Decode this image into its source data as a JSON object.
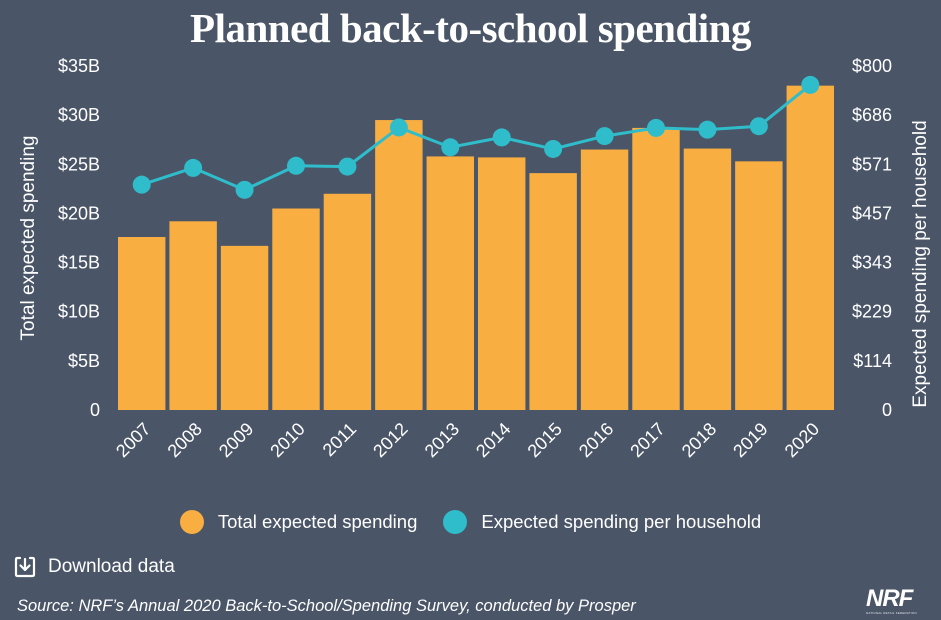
{
  "title": "Planned back-to-school spending",
  "chart_data": {
    "type": "bar+line",
    "categories": [
      "2007",
      "2008",
      "2009",
      "2010",
      "2011",
      "2012",
      "2013",
      "2014",
      "2015",
      "2016",
      "2017",
      "2018",
      "2019",
      "2020"
    ],
    "series": [
      {
        "name": "Total expected spending",
        "type": "bar",
        "axis": "left",
        "color": "#f9ae42",
        "values": [
          17.6,
          19.2,
          16.7,
          20.5,
          22.0,
          29.5,
          25.8,
          25.7,
          24.1,
          26.5,
          28.7,
          26.6,
          25.3,
          33.0
        ]
      },
      {
        "name": "Expected spending per household",
        "type": "line",
        "axis": "right",
        "color": "#2fbdcb",
        "values": [
          524,
          563,
          512,
          568,
          566,
          657,
          611,
          634,
          607,
          637,
          656,
          652,
          660,
          756
        ]
      }
    ],
    "y_left": {
      "label": "Total expected spending",
      "range": [
        0,
        35
      ],
      "ticks": [
        {
          "value": 0,
          "label": "0"
        },
        {
          "value": 5,
          "label": "$5B"
        },
        {
          "value": 10,
          "label": "$10B"
        },
        {
          "value": 15,
          "label": "$15B"
        },
        {
          "value": 20,
          "label": "$20B"
        },
        {
          "value": 25,
          "label": "$25B"
        },
        {
          "value": 30,
          "label": "$30B"
        },
        {
          "value": 35,
          "label": "$35B"
        }
      ]
    },
    "y_right": {
      "label": "Expected spending per household",
      "range": [
        0,
        800
      ],
      "ticks": [
        {
          "value": 0,
          "label": "0"
        },
        {
          "value": 114,
          "label": "$114"
        },
        {
          "value": 229,
          "label": "$229"
        },
        {
          "value": 343,
          "label": "$343"
        },
        {
          "value": 457,
          "label": "$457"
        },
        {
          "value": 571,
          "label": "$571"
        },
        {
          "value": 686,
          "label": "$686"
        },
        {
          "value": 800,
          "label": "$800"
        }
      ]
    },
    "grid": false,
    "legend_position": "bottom"
  },
  "download": {
    "label": "Download data",
    "icon": "download-icon"
  },
  "source": "Source: NRF’s Annual 2020 Back-to-School/Spending Survey, conducted by Prosper",
  "logo": {
    "text": "NRF",
    "tagline": "NATIONAL RETAIL FEDERATION"
  }
}
